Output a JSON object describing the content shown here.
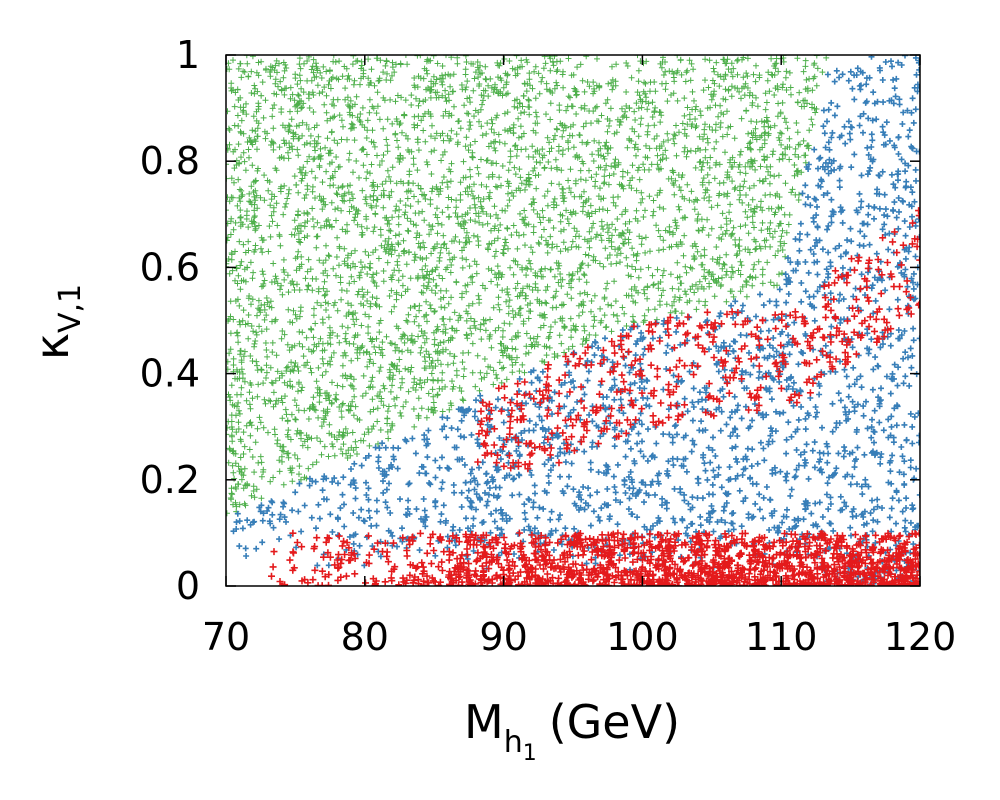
{
  "chart_data": {
    "type": "scatter",
    "title": "",
    "xlabel": {
      "main": "M",
      "sub": "h",
      "subsub": "1",
      "unit": "(GeV)"
    },
    "ylabel": {
      "main": "κ",
      "sub": "V,1"
    },
    "xlim": [
      70,
      120
    ],
    "ylim": [
      0,
      1
    ],
    "xticks": [
      "70",
      "80",
      "90",
      "100",
      "110",
      "120"
    ],
    "yticks": [
      "0",
      "0.2",
      "0.4",
      "0.6",
      "0.8",
      "1"
    ],
    "grid": false,
    "legend": "none",
    "series": [
      {
        "name": "green",
        "color": "#4daf4a",
        "marker": "plus",
        "description_region": "upper-left region above boundary y ≈ 0.14 + 0.46*(x-70)/28 up to x≈113",
        "n_points_approx": 9000
      },
      {
        "name": "blue",
        "color": "#377eb8",
        "marker": "plus",
        "description_region": "between red band and green region, extending to y=1 for x>112",
        "n_points_approx": 9000
      },
      {
        "name": "red",
        "color": "#e41a1c",
        "marker": "plus",
        "description_region": "bottom band y<0.1 for x>73, plus sparse cluster y 0.3–0.7 for x>92",
        "n_points_approx": 2200
      }
    ]
  }
}
